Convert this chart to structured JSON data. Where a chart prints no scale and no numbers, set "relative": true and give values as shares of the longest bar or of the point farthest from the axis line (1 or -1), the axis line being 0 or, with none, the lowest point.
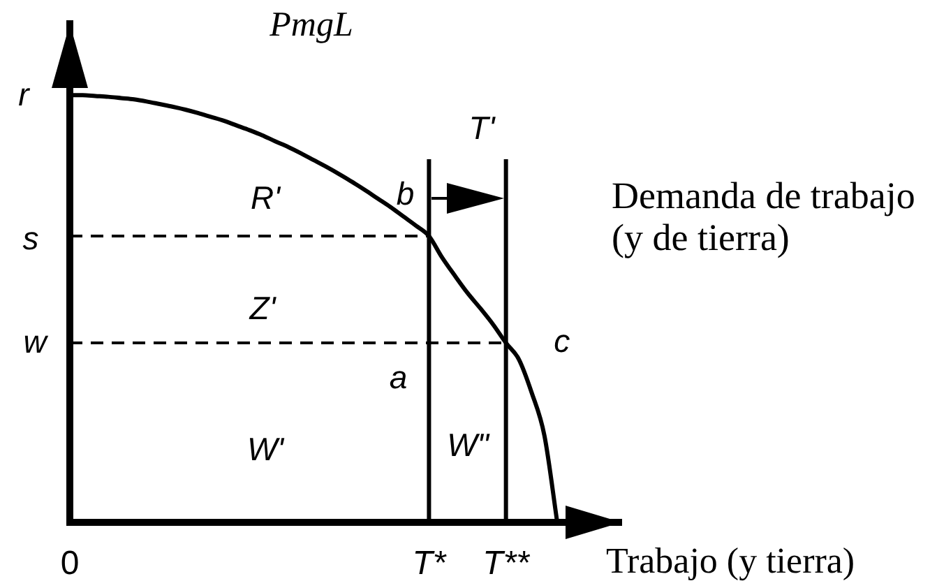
{
  "chart_data": {
    "type": "line",
    "relative": true,
    "ylabel": "PmgL",
    "xlabel": "Trabajo (y tierra)",
    "categories": [
      "0",
      null,
      null,
      null,
      null,
      null,
      null,
      null,
      null,
      null,
      null,
      null,
      null,
      null,
      null,
      null,
      null,
      null,
      null,
      null,
      null,
      null,
      null,
      null,
      null,
      null,
      null,
      null,
      "T*",
      null,
      null,
      null,
      null,
      null,
      "T**",
      null,
      null,
      null,
      null,
      null,
      null,
      null,
      null,
      null
    ],
    "series": [
      {
        "name": "Demanda de trabajo (y de tierra)",
        "color": "#000000",
        "values": [
          1,
          1,
          0.998,
          0.996,
          0.993,
          0.99,
          0.985,
          0.979,
          0.973,
          0.966,
          0.958,
          0.949,
          0.94,
          0.929,
          0.918,
          0.906,
          0.892,
          0.879,
          0.864,
          0.848,
          0.832,
          0.815,
          0.797,
          0.778,
          0.758,
          0.738,
          0.716,
          0.694,
          0.67,
          0.621,
          0.578,
          0.537,
          0.501,
          0.463,
          0.42,
          0.382,
          0.304,
          0.203,
          0,
          null,
          null,
          null,
          null,
          null
        ]
      },
      {
        "color": "#000000",
        "x": [
          "0",
          "T*"
        ],
        "values": [
          0.67,
          0.67
        ],
        "line_style": "dashed"
      },
      {
        "color": "#000000",
        "x": [
          "0",
          "T**"
        ],
        "values": [
          0.42,
          0.42
        ],
        "line_style": "dashed"
      },
      {
        "color": "#000000",
        "x": [
          "T*",
          "T*"
        ],
        "values": [
          0,
          0.85
        ]
      },
      {
        "color": "#000000",
        "x": [
          "T**",
          "T**"
        ],
        "values": [
          0,
          0.85
        ]
      }
    ],
    "annotations": [
      "r",
      "s",
      "w",
      {
        "text": "b",
        "x": "T*",
        "y": 0.67
      },
      {
        "text": "a",
        "x": "T*",
        "y": 0.42
      },
      {
        "text": "c",
        "x": "T**",
        "y": 0.42
      },
      "R'",
      "Z'",
      "W'",
      "W\"",
      "T'"
    ],
    "marker": "none",
    "line_style": "solid",
    "tick_labels": "x"
  }
}
